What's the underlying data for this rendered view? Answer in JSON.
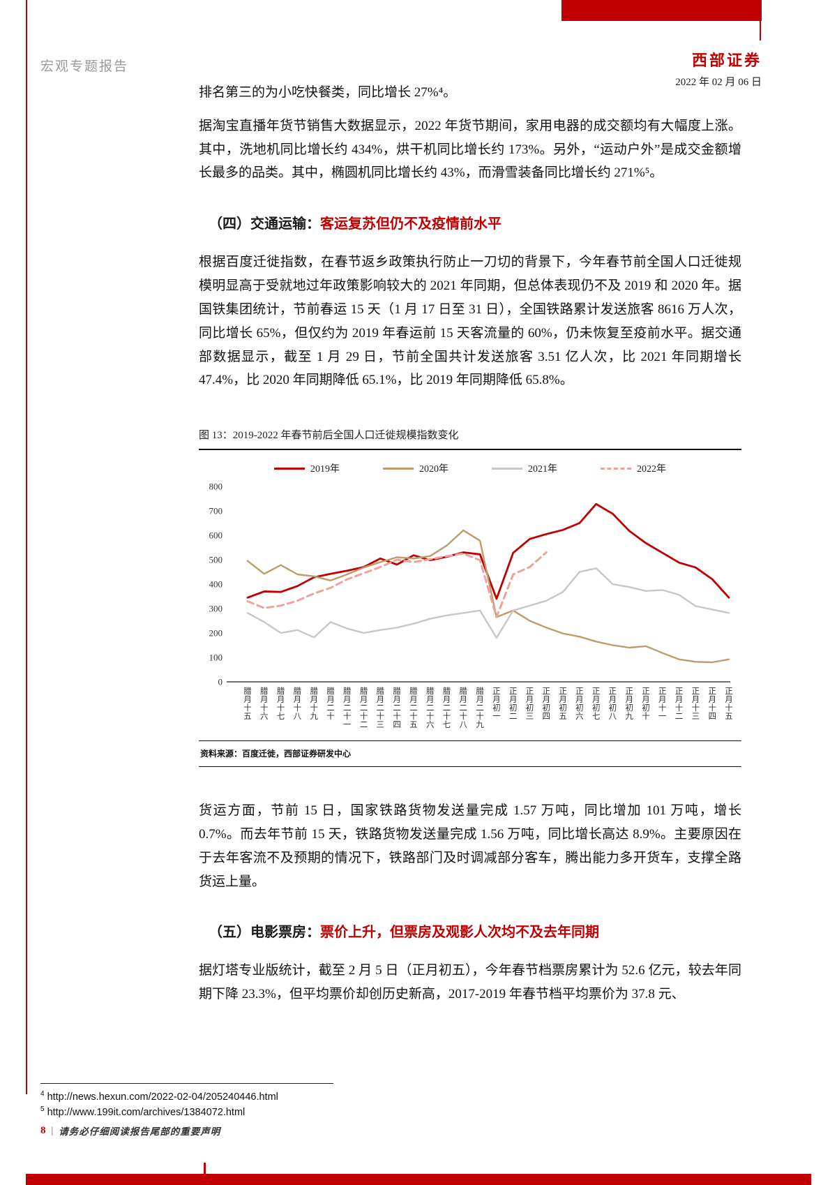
{
  "header": {
    "doc_type": "宏观专题报告",
    "brand": "西部证券",
    "date": "2022 年 02 月 06 日"
  },
  "body": {
    "p0": "排名第三的为小吃快餐类，同比增长 27%⁴。",
    "p1": "据淘宝直播年货节销售大数据显示，2022 年货节期间，家用电器的成交额均有大幅度上涨。其中，洗地机同比增长约 434%，烘干机同比增长约 173%。另外，“运动户外”是成交金额增长最多的品类。其中，椭圆机同比增长约 43%，而滑雪装备同比增长约 271%⁵。",
    "h4_prefix": "（四）交通运输：",
    "h4_title": "客运复苏但仍不及疫情前水平",
    "p2": "根据百度迁徙指数，在春节返乡政策执行防止一刀切的背景下，今年春节前全国人口迁徙规模明显高于受就地过年政策影响较大的 2021 年同期，但总体表现仍不及 2019 和 2020 年。据国铁集团统计，节前春运 15 天（1 月 17 日至 31 日），全国铁路累计发送旅客 8616 万人次，同比增长 65%，但仅约为 2019 年春运前 15 天客流量的 60%，仍未恢复至疫前水平。据交通部数据显示，截至 1 月 29 日，节前全国共计发送旅客 3.51 亿人次，比 2021 年同期增长 47.4%，比 2020 年同期降低 65.1%，比 2019 年同期降低 65.8%。",
    "p3": "货运方面，节前 15 日，国家铁路货物发送量完成 1.57 万吨，同比增加 101 万吨，增长 0.7%。而去年节前 15 天，铁路货物发送量完成 1.56 万吨，同比增长高达 8.9%。主要原因在于去年客流不及预期的情况下，铁路部门及时调减部分客车，腾出能力多开货车，支撑全路货运上量。",
    "h5_prefix": "（五）电影票房：",
    "h5_title": "票价上升，但票房及观影人次均不及去年同期",
    "p4": "据灯塔专业版统计，截至 2 月 5 日（正月初五），今年春节档票房累计为 52.6 亿元，较去年同期下降 23.3%，但平均票价却创历史新高，2017-2019 年春节档平均票价为 37.8 元、"
  },
  "figure": {
    "title": "图 13：2019-2022 年春节前后全国人口迁徙规模指数变化",
    "source": "资料来源：百度迁徙，西部证券研发中心"
  },
  "chart_data": {
    "type": "line",
    "title": "图 13：2019-2022 年春节前后全国人口迁徙规模指数变化",
    "ylim": [
      0,
      800
    ],
    "ytick_step": 100,
    "grid": false,
    "legend_position": "top",
    "categories": [
      "腊月十五",
      "腊月十六",
      "腊月十七",
      "腊月十八",
      "腊月十九",
      "腊月二十",
      "腊月二十一",
      "腊月二十二",
      "腊月二十三",
      "腊月二十四",
      "腊月二十五",
      "腊月二十六",
      "腊月二十七",
      "腊月二十八",
      "腊月二十九",
      "正月初一",
      "正月初二",
      "正月初三",
      "正月初四",
      "正月初五",
      "正月初六",
      "正月初七",
      "正月初八",
      "正月初九",
      "正月初十",
      "正月十一",
      "正月十二",
      "正月十三",
      "正月十四",
      "正月十五"
    ],
    "series": [
      {
        "name": "2019年",
        "color": "#c00000",
        "dash": false,
        "width": 2.8,
        "values": [
          345,
          370,
          368,
          392,
          428,
          442,
          455,
          470,
          505,
          480,
          518,
          498,
          512,
          530,
          522,
          340,
          528,
          585,
          605,
          622,
          650,
          728,
          688,
          618,
          568,
          528,
          488,
          468,
          420,
          345
        ]
      },
      {
        "name": "2020年",
        "color": "#bf9b6b",
        "dash": false,
        "width": 2.4,
        "values": [
          495,
          442,
          478,
          440,
          432,
          415,
          440,
          468,
          490,
          510,
          505,
          515,
          558,
          620,
          578,
          265,
          292,
          250,
          222,
          198,
          185,
          165,
          150,
          140,
          146,
          118,
          92,
          82,
          80,
          92
        ]
      },
      {
        "name": "2021年",
        "color": "#c7c7c7",
        "dash": false,
        "width": 2.4,
        "values": [
          282,
          245,
          200,
          212,
          182,
          245,
          218,
          200,
          212,
          222,
          238,
          258,
          272,
          282,
          292,
          180,
          292,
          312,
          332,
          368,
          450,
          465,
          400,
          388,
          372,
          376,
          356,
          310,
          296,
          282
        ]
      },
      {
        "name": "2022年",
        "color": "#efa29b",
        "dash": true,
        "width": 3,
        "values": [
          330,
          302,
          312,
          332,
          362,
          385,
          420,
          445,
          470,
          500,
          490,
          502,
          515,
          525,
          498,
          265,
          440,
          470,
          530,
          null,
          null,
          null,
          null,
          null,
          null,
          null,
          null,
          null,
          null,
          null
        ]
      }
    ]
  },
  "footnotes": [
    {
      "marker": "4",
      "text": "http://news.hexun.com/2022-02-04/205240446.html"
    },
    {
      "marker": "5",
      "text": "http://www.199it.com/archives/1384072.html"
    }
  ],
  "footer": {
    "page": "8",
    "separator": "|",
    "disclaimer": "请务必仔细阅读报告尾部的重要声明"
  },
  "colors": {
    "accent_red": "#c00000"
  }
}
